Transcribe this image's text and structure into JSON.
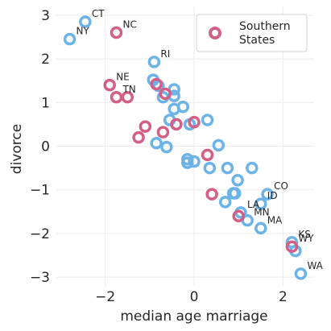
{
  "chart_data": {
    "type": "scatter",
    "xlabel": "median age marriage",
    "ylabel": "divorce",
    "xlim": [
      -3.1,
      2.7
    ],
    "ylim": [
      -3.2,
      3.2
    ],
    "xticks": [
      -2,
      0,
      2
    ],
    "yticks": [
      -3,
      -2,
      -1,
      0,
      1,
      2,
      3
    ],
    "xtick_labels": [
      "−2",
      "0",
      "2"
    ],
    "ytick_labels": [
      "−3",
      "−2",
      "−1",
      "0",
      "1",
      "2",
      "3"
    ],
    "grid": true,
    "legend": {
      "position": "top-right",
      "entries": [
        "Southern\nStates"
      ]
    },
    "colors": {
      "non_southern": "#6cb4e8",
      "southern": "#d45f86"
    },
    "series": [
      {
        "key": "non_southern",
        "points": [
          {
            "x": -2.8,
            "y": 2.45,
            "label": "NY"
          },
          {
            "x": -2.45,
            "y": 2.85,
            "label": "CT"
          },
          {
            "x": -0.9,
            "y": 1.93,
            "label": "RI"
          },
          {
            "x": -0.92,
            "y": 1.52
          },
          {
            "x": -0.8,
            "y": 1.38
          },
          {
            "x": -0.7,
            "y": 1.12
          },
          {
            "x": -0.45,
            "y": 1.3
          },
          {
            "x": -0.45,
            "y": 1.15
          },
          {
            "x": -0.45,
            "y": 0.85
          },
          {
            "x": -0.25,
            "y": 0.9
          },
          {
            "x": -0.1,
            "y": 0.5
          },
          {
            "x": -0.55,
            "y": 0.6
          },
          {
            "x": 0.3,
            "y": 0.6
          },
          {
            "x": 0.55,
            "y": 0.02
          },
          {
            "x": -0.85,
            "y": 0.07
          },
          {
            "x": -0.62,
            "y": -0.02
          },
          {
            "x": -0.15,
            "y": -0.3
          },
          {
            "x": -0.15,
            "y": -0.38
          },
          {
            "x": 0.0,
            "y": -0.35
          },
          {
            "x": 0.35,
            "y": -0.5
          },
          {
            "x": 0.75,
            "y": -0.5
          },
          {
            "x": 1.3,
            "y": -0.5
          },
          {
            "x": 0.98,
            "y": -0.78
          },
          {
            "x": 0.88,
            "y": -1.08
          },
          {
            "x": 0.92,
            "y": -1.08
          },
          {
            "x": 0.7,
            "y": -1.28
          },
          {
            "x": 1.65,
            "y": -1.1,
            "label": "CO"
          },
          {
            "x": 1.5,
            "y": -1.32,
            "label": "ID"
          },
          {
            "x": 1.05,
            "y": -1.52,
            "label": "LA"
          },
          {
            "x": 1.2,
            "y": -1.7,
            "label": "MN"
          },
          {
            "x": 1.5,
            "y": -1.88,
            "label": "MA"
          },
          {
            "x": 2.2,
            "y": -2.2,
            "label": "KS"
          },
          {
            "x": 2.28,
            "y": -2.4
          },
          {
            "x": 2.4,
            "y": -2.92,
            "label": "WA"
          }
        ]
      },
      {
        "key": "southern",
        "points": [
          {
            "x": -1.75,
            "y": 2.6,
            "label": "NC"
          },
          {
            "x": -1.9,
            "y": 1.4,
            "label": "NE"
          },
          {
            "x": -1.75,
            "y": 1.12,
            "label": "TN"
          },
          {
            "x": -1.5,
            "y": 1.12
          },
          {
            "x": -0.85,
            "y": 1.42
          },
          {
            "x": -0.65,
            "y": 1.2
          },
          {
            "x": -0.4,
            "y": 0.5
          },
          {
            "x": 0.0,
            "y": 0.55
          },
          {
            "x": -1.1,
            "y": 0.45
          },
          {
            "x": -0.7,
            "y": 0.32
          },
          {
            "x": -1.25,
            "y": 0.2
          },
          {
            "x": 0.3,
            "y": -0.2
          },
          {
            "x": 0.4,
            "y": -1.1
          },
          {
            "x": 1.0,
            "y": -1.6
          },
          {
            "x": 2.2,
            "y": -2.3,
            "label": "WY"
          }
        ]
      }
    ]
  }
}
